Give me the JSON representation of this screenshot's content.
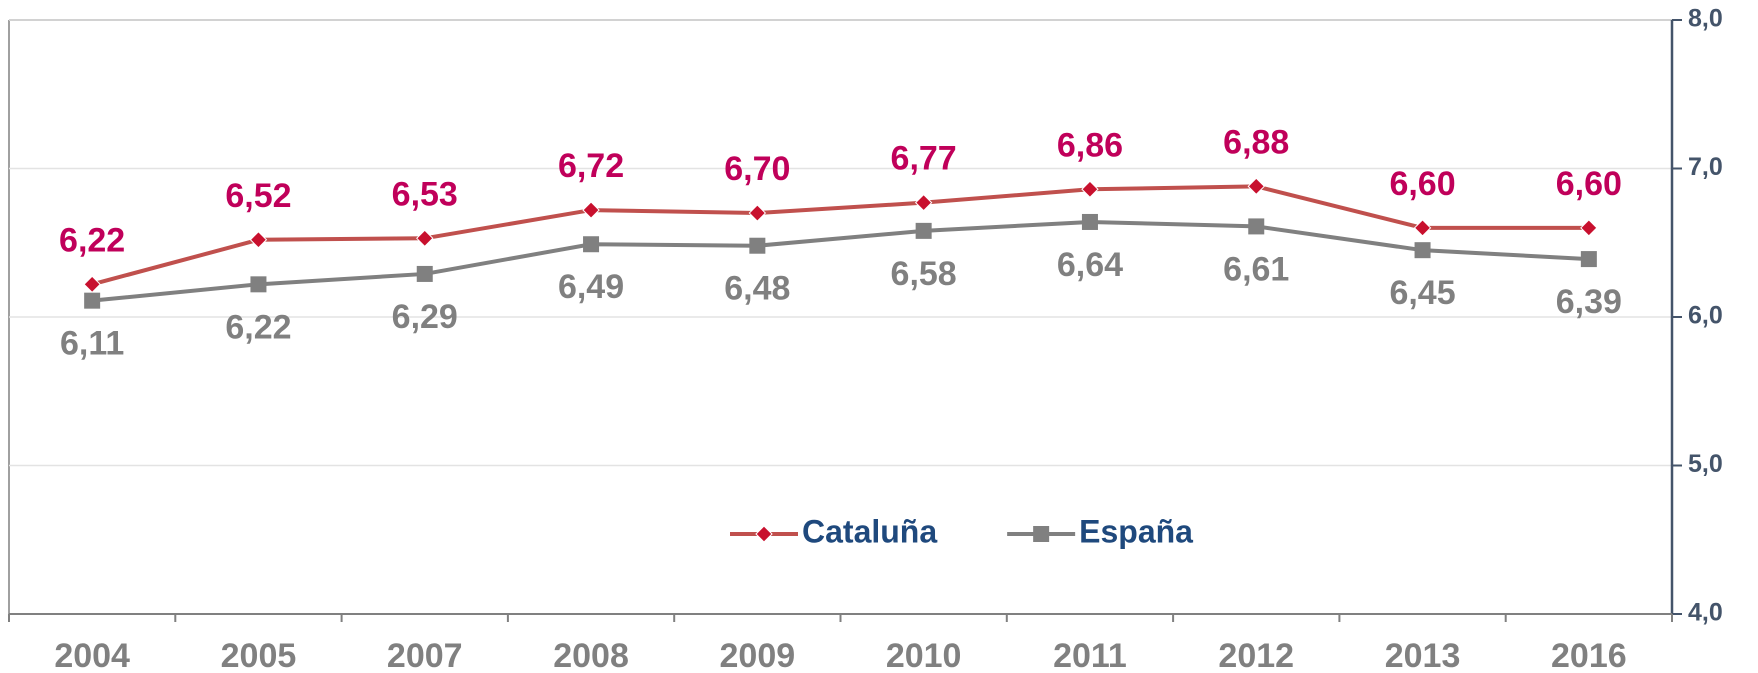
{
  "chart_data": {
    "type": "line",
    "categories": [
      "2004",
      "2005",
      "2007",
      "2008",
      "2009",
      "2010",
      "2011",
      "2012",
      "2013",
      "2016"
    ],
    "series": [
      {
        "name": "Cataluña",
        "color": "#c0504d",
        "marker": "diamond",
        "marker_color": "#c8102e",
        "label_color": "#c0005a",
        "values": [
          6.22,
          6.52,
          6.53,
          6.72,
          6.7,
          6.77,
          6.86,
          6.88,
          6.6,
          6.6
        ],
        "value_labels": [
          "6,22",
          "6,52",
          "6,53",
          "6,72",
          "6,70",
          "6,77",
          "6,86",
          "6,88",
          "6,60",
          "6,60"
        ]
      },
      {
        "name": "España",
        "color": "#808080",
        "marker": "square",
        "marker_color": "#808080",
        "label_color": "#808080",
        "values": [
          6.11,
          6.22,
          6.29,
          6.49,
          6.48,
          6.58,
          6.64,
          6.61,
          6.45,
          6.39
        ],
        "value_labels": [
          "6,11",
          "6,22",
          "6,29",
          "6,49",
          "6,48",
          "6,58",
          "6,64",
          "6,61",
          "6,45",
          "6,39"
        ]
      }
    ],
    "ylim": [
      4,
      8
    ],
    "yticks": [
      {
        "value": 4,
        "label": "4,0"
      },
      {
        "value": 5,
        "label": "5,0"
      },
      {
        "value": 6,
        "label": "6,0"
      },
      {
        "value": 7,
        "label": "7,0"
      },
      {
        "value": 8,
        "label": "8,0"
      }
    ],
    "y_axis_side": "right",
    "grid": true,
    "legend": "bottom"
  }
}
